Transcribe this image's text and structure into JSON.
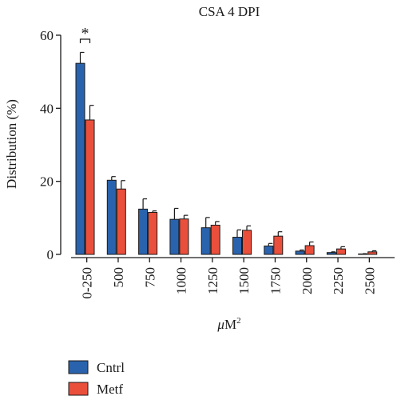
{
  "chart_data": {
    "type": "bar",
    "title": "CSA 4 DPI",
    "xlabel_italic": "μ",
    "xlabel_rest": "M",
    "xlabel_sup": "2",
    "ylabel": "Distribution (%)",
    "ylim": [
      0,
      60
    ],
    "yticks": [
      0,
      20,
      40,
      60
    ],
    "grid": false,
    "legend_position": "bottom-left",
    "categories": [
      "0-250",
      "500",
      "750",
      "1000",
      "1250",
      "1500",
      "1750",
      "2000",
      "2250",
      "2500"
    ],
    "series": [
      {
        "name": "Cntrl",
        "color": "#2a63ad",
        "values": [
          52.3,
          20.3,
          12.4,
          9.6,
          7.3,
          4.7,
          2.3,
          0.9,
          0.5,
          0.1
        ],
        "errors": [
          3.0,
          1.0,
          2.8,
          3.0,
          2.8,
          2.0,
          0.7,
          0.3,
          0.2,
          0.1
        ]
      },
      {
        "name": "Metf",
        "color": "#ea4f3c",
        "values": [
          36.8,
          17.9,
          11.5,
          9.7,
          8.0,
          6.6,
          5.0,
          2.4,
          1.5,
          0.7
        ],
        "errors": [
          4.0,
          2.3,
          0.4,
          1.0,
          1.0,
          1.2,
          1.2,
          1.0,
          0.6,
          0.3
        ]
      }
    ],
    "annotations": [
      {
        "text": "*",
        "category": "0-250",
        "between_series": [
          "Cntrl",
          "Metf"
        ]
      }
    ]
  }
}
